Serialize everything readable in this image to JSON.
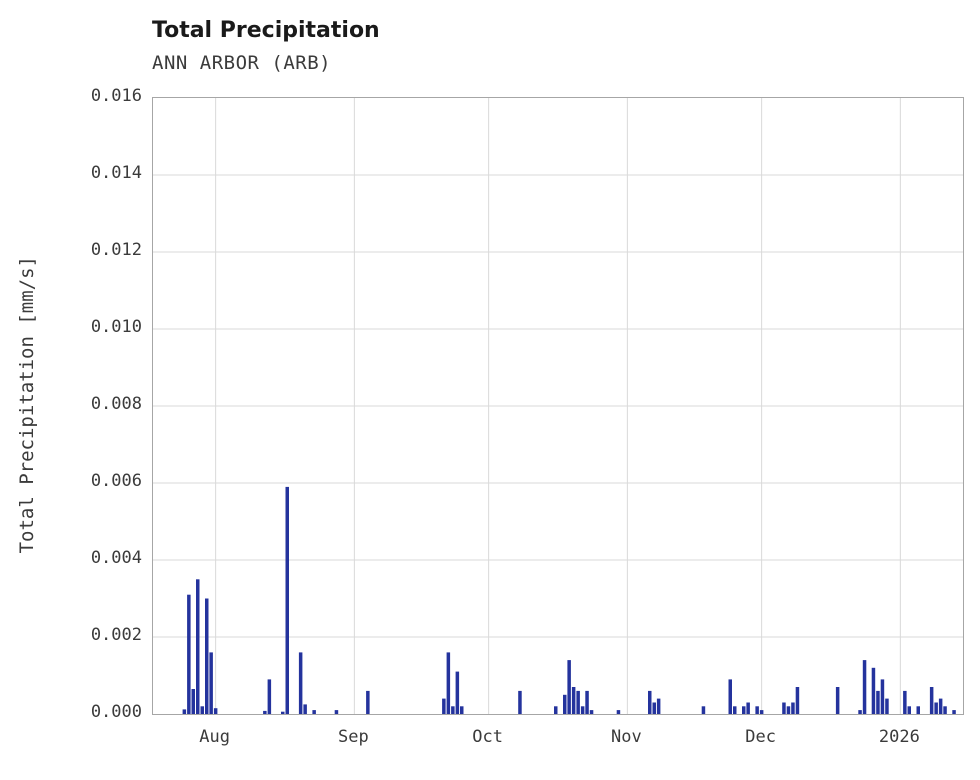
{
  "chart": {
    "title": "Total Precipitation",
    "subtitle": "ANN ARBOR (ARB)",
    "ylabel": "Total Precipitation [mm/s]"
  },
  "chart_data": {
    "type": "bar",
    "title": "Total Precipitation",
    "subtitle": "ANN ARBOR (ARB)",
    "xlabel": "",
    "ylabel": "Total Precipitation [mm/s]",
    "ylim": [
      0,
      0.016
    ],
    "x_range": [
      "2025-07-18",
      "2026-01-15"
    ],
    "grid": true,
    "legend": "none",
    "bar_color": "#24339d",
    "grid_color": "#d9d9d9",
    "yticks": [
      {
        "value": 0.0,
        "label": "0.000"
      },
      {
        "value": 0.002,
        "label": "0.002"
      },
      {
        "value": 0.004,
        "label": "0.004"
      },
      {
        "value": 0.006,
        "label": "0.006"
      },
      {
        "value": 0.008,
        "label": "0.008"
      },
      {
        "value": 0.01,
        "label": "0.010"
      },
      {
        "value": 0.012,
        "label": "0.012"
      },
      {
        "value": 0.014,
        "label": "0.014"
      },
      {
        "value": 0.016,
        "label": "0.016"
      }
    ],
    "xticks": [
      {
        "date": "2025-08-01",
        "label": "Aug"
      },
      {
        "date": "2025-09-01",
        "label": "Sep"
      },
      {
        "date": "2025-10-01",
        "label": "Oct"
      },
      {
        "date": "2025-11-01",
        "label": "Nov"
      },
      {
        "date": "2025-12-01",
        "label": "Dec"
      },
      {
        "date": "2026-01-01",
        "label": "2026"
      }
    ],
    "points": [
      {
        "date": "2025-07-25",
        "value": 0.00012
      },
      {
        "date": "2025-07-26",
        "value": 0.0031
      },
      {
        "date": "2025-07-27",
        "value": 0.00065
      },
      {
        "date": "2025-07-28",
        "value": 0.0035
      },
      {
        "date": "2025-07-29",
        "value": 0.0002
      },
      {
        "date": "2025-07-30",
        "value": 0.003
      },
      {
        "date": "2025-07-31",
        "value": 0.0016
      },
      {
        "date": "2025-08-01",
        "value": 0.00015
      },
      {
        "date": "2025-08-12",
        "value": 8e-05
      },
      {
        "date": "2025-08-13",
        "value": 0.0009
      },
      {
        "date": "2025-08-16",
        "value": 6e-05
      },
      {
        "date": "2025-08-17",
        "value": 0.0059
      },
      {
        "date": "2025-08-20",
        "value": 0.0016
      },
      {
        "date": "2025-08-21",
        "value": 0.00025
      },
      {
        "date": "2025-08-23",
        "value": 0.0001
      },
      {
        "date": "2025-08-28",
        "value": 0.0001
      },
      {
        "date": "2025-09-04",
        "value": 0.0006
      },
      {
        "date": "2025-09-21",
        "value": 0.0004
      },
      {
        "date": "2025-09-22",
        "value": 0.0016
      },
      {
        "date": "2025-09-23",
        "value": 0.0002
      },
      {
        "date": "2025-09-24",
        "value": 0.0011
      },
      {
        "date": "2025-09-25",
        "value": 0.0002
      },
      {
        "date": "2025-10-08",
        "value": 0.0006
      },
      {
        "date": "2025-10-16",
        "value": 0.0002
      },
      {
        "date": "2025-10-18",
        "value": 0.0005
      },
      {
        "date": "2025-10-19",
        "value": 0.0014
      },
      {
        "date": "2025-10-20",
        "value": 0.0007
      },
      {
        "date": "2025-10-21",
        "value": 0.0006
      },
      {
        "date": "2025-10-22",
        "value": 0.0002
      },
      {
        "date": "2025-10-23",
        "value": 0.0006
      },
      {
        "date": "2025-10-24",
        "value": 0.0001
      },
      {
        "date": "2025-10-30",
        "value": 0.0001
      },
      {
        "date": "2025-11-06",
        "value": 0.0006
      },
      {
        "date": "2025-11-07",
        "value": 0.0003
      },
      {
        "date": "2025-11-08",
        "value": 0.0004
      },
      {
        "date": "2025-11-18",
        "value": 0.0002
      },
      {
        "date": "2025-11-24",
        "value": 0.0009
      },
      {
        "date": "2025-11-25",
        "value": 0.0002
      },
      {
        "date": "2025-11-27",
        "value": 0.0002
      },
      {
        "date": "2025-11-28",
        "value": 0.0003
      },
      {
        "date": "2025-11-30",
        "value": 0.0002
      },
      {
        "date": "2025-12-01",
        "value": 0.0001
      },
      {
        "date": "2025-12-06",
        "value": 0.0003
      },
      {
        "date": "2025-12-07",
        "value": 0.0002
      },
      {
        "date": "2025-12-08",
        "value": 0.0003
      },
      {
        "date": "2025-12-09",
        "value": 0.0007
      },
      {
        "date": "2025-12-18",
        "value": 0.0007
      },
      {
        "date": "2025-12-23",
        "value": 0.0001
      },
      {
        "date": "2025-12-24",
        "value": 0.0014
      },
      {
        "date": "2025-12-26",
        "value": 0.0012
      },
      {
        "date": "2025-12-27",
        "value": 0.0006
      },
      {
        "date": "2025-12-28",
        "value": 0.0009
      },
      {
        "date": "2025-12-29",
        "value": 0.0004
      },
      {
        "date": "2026-01-02",
        "value": 0.0006
      },
      {
        "date": "2026-01-03",
        "value": 0.0002
      },
      {
        "date": "2026-01-05",
        "value": 0.0002
      },
      {
        "date": "2026-01-08",
        "value": 0.0007
      },
      {
        "date": "2026-01-09",
        "value": 0.0003
      },
      {
        "date": "2026-01-10",
        "value": 0.0004
      },
      {
        "date": "2026-01-11",
        "value": 0.0002
      },
      {
        "date": "2026-01-13",
        "value": 0.0001
      }
    ]
  }
}
